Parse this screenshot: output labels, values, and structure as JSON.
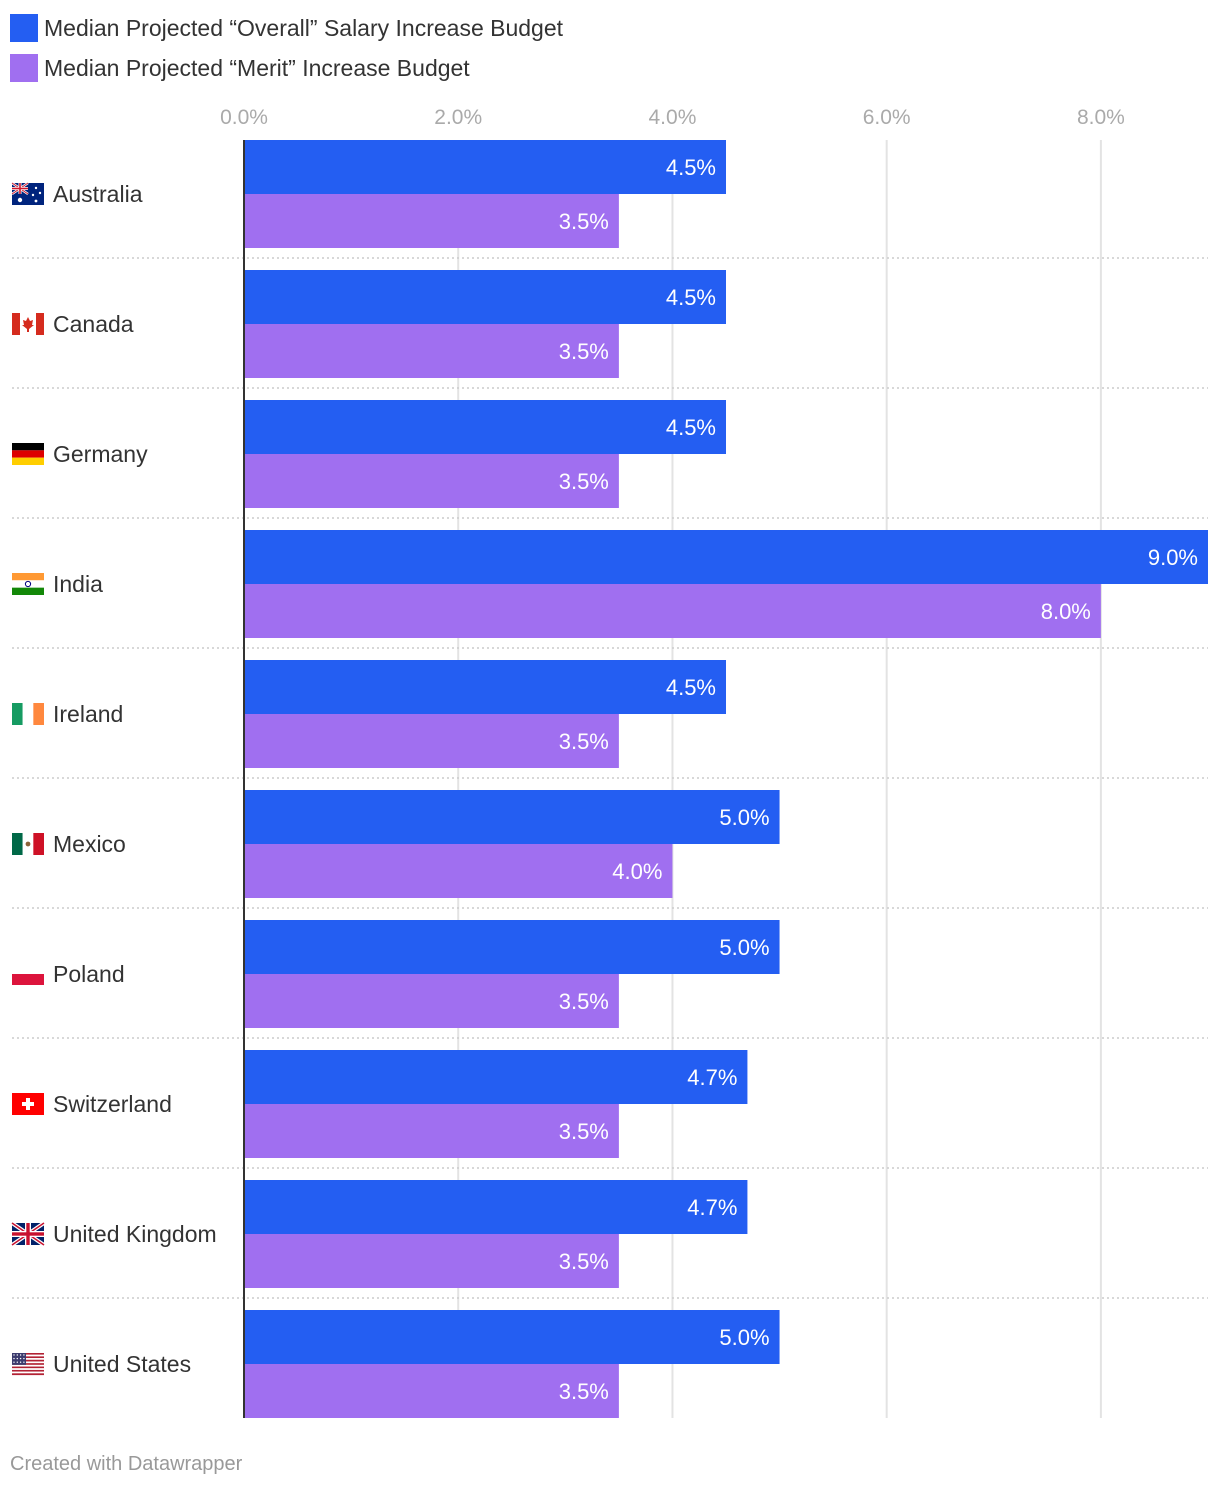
{
  "chart_data": {
    "type": "bar",
    "orientation": "horizontal",
    "categories": [
      "Australia",
      "Canada",
      "Germany",
      "India",
      "Ireland",
      "Mexico",
      "Poland",
      "Switzerland",
      "United Kingdom",
      "United States"
    ],
    "category_flags": [
      "flag-australia-icon",
      "flag-canada-icon",
      "flag-germany-icon",
      "flag-india-icon",
      "flag-ireland-icon",
      "flag-mexico-icon",
      "flag-poland-icon",
      "flag-switzerland-icon",
      "flag-united-kingdom-icon",
      "flag-united-states-icon"
    ],
    "series": [
      {
        "name": "Median Projected “Overall” Salary Increase Budget",
        "color": "#245ef2",
        "values": [
          4.5,
          4.5,
          4.5,
          9.0,
          4.5,
          5.0,
          5.0,
          4.7,
          4.7,
          5.0
        ],
        "labels": [
          "4.5%",
          "4.5%",
          "4.5%",
          "9.0%",
          "4.5%",
          "5.0%",
          "5.0%",
          "4.7%",
          "4.7%",
          "5.0%"
        ]
      },
      {
        "name": "Median Projected “Merit” Increase Budget",
        "color": "#a06ff0",
        "values": [
          3.5,
          3.5,
          3.5,
          8.0,
          3.5,
          4.0,
          3.5,
          3.5,
          3.5,
          3.5
        ],
        "labels": [
          "3.5%",
          "3.5%",
          "3.5%",
          "8.0%",
          "3.5%",
          "4.0%",
          "3.5%",
          "3.5%",
          "3.5%",
          "3.5%"
        ]
      }
    ],
    "x_ticks": [
      0,
      2,
      4,
      6,
      8
    ],
    "x_tick_labels": [
      "0.0%",
      "2.0%",
      "4.0%",
      "6.0%",
      "8.0%"
    ],
    "xlim": [
      0,
      9.0
    ],
    "grid": true,
    "legend_position": "top-left"
  },
  "footer": "Created with Datawrapper"
}
